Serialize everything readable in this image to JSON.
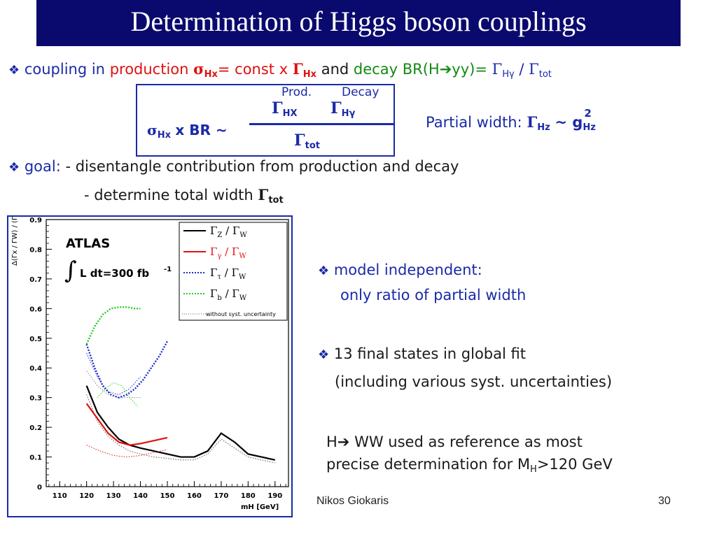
{
  "title": "Determination of Higgs boson couplings",
  "line1": {
    "part1": "coupling in",
    "production": "production",
    "sigma": "σ",
    "hx_sub": "Hx",
    "eq_const": "= const x",
    "gamma": "Γ",
    "hx_sub2": "Hx",
    "and": "and",
    "decay": "decay",
    "br": "BR(H",
    "arrow": "➔",
    "yy": "yy)=",
    "hy_sub": "Hγ",
    "slash": "/",
    "tot_sub": "tot"
  },
  "formula": {
    "sigma": "σ",
    "hx": "Hx",
    "xbr": "x BR ~",
    "prod": "Prod.",
    "decay": "Decay",
    "gamma": "Γ",
    "num1_sub": "HX",
    "num2_sub": "Hγ",
    "den_sub": "tot"
  },
  "partial_width": {
    "label": "Partial width:",
    "gamma": "Γ",
    "hz": "Hz",
    "tilde_g": "~ g",
    "sup": "2",
    "hz2": "Hz"
  },
  "goal": {
    "label": "goal:",
    "item1": " - disentangle contribution from production and decay",
    "item2": "- determine total width",
    "gamma": "Γ",
    "tot": "tot"
  },
  "right_notes": {
    "n1_line1": "model independent:",
    "n1_line2": "only ratio of partial width",
    "n2_line1": "13 final states in global fit",
    "n2_line2": "(including various syst. uncertainties)",
    "n3_line1": "H",
    "n3_arrow": "➔",
    "n3_line1b": " WW used as  reference as most",
    "n3_line2a": "precise determination for M",
    "n3_sub": "H",
    "n3_line2b": ">120 GeV"
  },
  "footer": {
    "author": "Nikos Giokaris",
    "page": "30"
  },
  "chart_data": {
    "type": "line",
    "experiment": "ATLAS",
    "lumi_prefix": "L dt=300 fb",
    "lumi_exp": "-1",
    "integral": "∫",
    "ylabel": "Δ(Γx / ΓW) / (Γx / ΓW)",
    "xlabel": "mH [GeV]",
    "xlim": [
      105,
      195
    ],
    "ylim": [
      0,
      0.9
    ],
    "xticks": [
      "110",
      "120",
      "130",
      "140",
      "150",
      "160",
      "170",
      "180",
      "190"
    ],
    "yticks": [
      "0",
      "0.1",
      "0.2",
      "0.3",
      "0.4",
      "0.5",
      "0.6",
      "0.7",
      "0.8",
      "0.9"
    ],
    "legend_position": "top-right",
    "legend": [
      {
        "gamma": "Γ",
        "sub": "Z",
        "slash": " / ",
        "gamma2": "Γ",
        "sub2": "W",
        "color": "#000000"
      },
      {
        "gamma": "Γ",
        "sub": "γ",
        "slash": " / ",
        "gamma2": "Γ",
        "sub2": "W",
        "color": "#e01010"
      },
      {
        "gamma": "Γ",
        "sub": "τ",
        "slash": " / ",
        "gamma2": "Γ",
        "sub2": "W",
        "color": "#1a2ad0"
      },
      {
        "gamma": "Γ",
        "sub": "b",
        "slash": " / ",
        "gamma2": "Γ",
        "sub2": "W",
        "color": "#22cc22"
      }
    ],
    "legend_note": "without syst. uncertainty",
    "series": [
      {
        "key": "Z",
        "color": "#000000",
        "style": "solid",
        "x": [
          120,
          124,
          128,
          132,
          136,
          140,
          145,
          150,
          155,
          160,
          165,
          170,
          175,
          180,
          185,
          190
        ],
        "y": [
          0.34,
          0.25,
          0.2,
          0.16,
          0.14,
          0.13,
          0.12,
          0.11,
          0.1,
          0.1,
          0.12,
          0.18,
          0.15,
          0.11,
          0.1,
          0.09
        ]
      },
      {
        "key": "Z_nosyst",
        "color": "#555555",
        "style": "dotted",
        "x": [
          120,
          124,
          128,
          132,
          136,
          140,
          145,
          150,
          155,
          160,
          165,
          170,
          175,
          180,
          185,
          190
        ],
        "y": [
          0.31,
          0.22,
          0.17,
          0.14,
          0.12,
          0.11,
          0.1,
          0.095,
          0.09,
          0.09,
          0.11,
          0.16,
          0.13,
          0.1,
          0.09,
          0.08
        ]
      },
      {
        "key": "gamma",
        "color": "#e01010",
        "style": "solid",
        "x": [
          120,
          124,
          128,
          132,
          136,
          140,
          145,
          150
        ],
        "y": [
          0.28,
          0.23,
          0.18,
          0.15,
          0.14,
          0.145,
          0.155,
          0.165
        ]
      },
      {
        "key": "gamma_nosyst",
        "color": "#e01010",
        "style": "dotted",
        "x": [
          120,
          125,
          130,
          135,
          140,
          145,
          150
        ],
        "y": [
          0.14,
          0.12,
          0.105,
          0.1,
          0.105,
          0.115,
          0.125
        ]
      },
      {
        "key": "tau",
        "color": "#1a2ad0",
        "style": "dotted-thick",
        "x": [
          120,
          123,
          126,
          129,
          132,
          135,
          138,
          141,
          144,
          147,
          150
        ],
        "y": [
          0.48,
          0.4,
          0.34,
          0.31,
          0.3,
          0.31,
          0.33,
          0.36,
          0.4,
          0.44,
          0.49
        ]
      },
      {
        "key": "tau_nosyst",
        "color": "#1a2ad0",
        "style": "dotted",
        "x": [
          120,
          124,
          128,
          132,
          136,
          140
        ],
        "y": [
          0.45,
          0.37,
          0.32,
          0.31,
          0.33,
          0.37
        ]
      },
      {
        "key": "b",
        "color": "#22cc22",
        "style": "dotted-thick",
        "x": [
          120,
          123,
          126,
          129,
          132,
          135,
          138,
          140
        ],
        "y": [
          0.48,
          0.54,
          0.58,
          0.6,
          0.605,
          0.605,
          0.6,
          0.6
        ]
      },
      {
        "key": "b_low",
        "color": "#22cc22",
        "style": "dotted",
        "x": [
          124,
          127,
          130,
          133,
          136,
          139
        ],
        "y": [
          0.3,
          0.33,
          0.35,
          0.34,
          0.3,
          0.27
        ]
      },
      {
        "key": "misc_gray",
        "color": "#888888",
        "style": "dotted",
        "x": [
          120,
          124,
          128,
          132,
          136,
          140
        ],
        "y": [
          0.39,
          0.34,
          0.31,
          0.3,
          0.3,
          0.3
        ]
      }
    ]
  }
}
